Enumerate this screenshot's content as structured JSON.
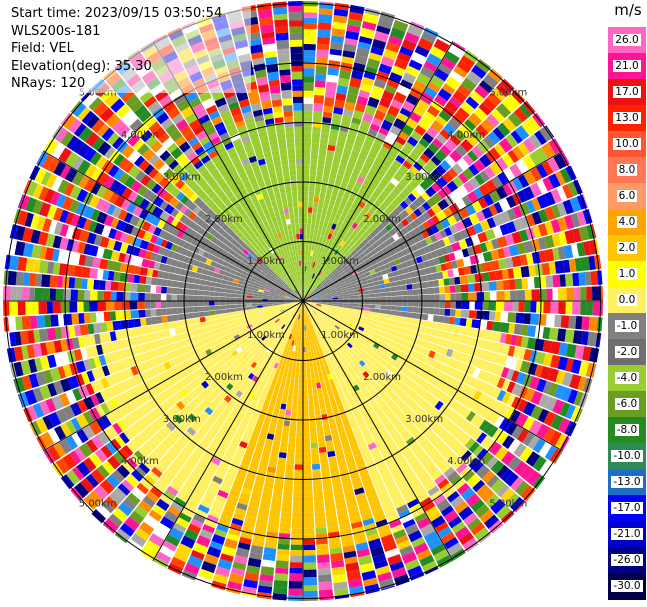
{
  "header": {
    "start_time": "Start time: 2023/09/15 03:50:54",
    "instrument": "WLS200s-181",
    "field": "Field: VEL",
    "elevation": "Elevation(deg): 35.30",
    "nrays": "NRays: 120"
  },
  "colorbar": {
    "unit": "m/s",
    "ticks": [
      "26.0",
      "21.0",
      "17.0",
      "13.0",
      "10.0",
      "8.0",
      "6.0",
      "4.0",
      "2.0",
      "1.0",
      "0.0",
      "-1.0",
      "-2.0",
      "-4.0",
      "-6.0",
      "-8.0",
      "-10.0",
      "-13.0",
      "-17.0",
      "-21.0",
      "-26.0",
      "-30.0"
    ],
    "colors": [
      "#ff66c4",
      "#ff1493",
      "#ee1111",
      "#ff2200",
      "#ff5533",
      "#ff7755",
      "#ff9966",
      "#ffa500",
      "#ffc400",
      "#ffff00",
      "#fff060",
      "#808080",
      "#6e6e6e",
      "#9acd32",
      "#6a9e22",
      "#228b22",
      "#2e8b57",
      "#1e6ec8",
      "#0000ff",
      "#0000cd",
      "#000080",
      "#00004a"
    ]
  },
  "chart_data": {
    "type": "ppi-radar",
    "field": "VEL",
    "units": "m/s",
    "nrays": 120,
    "range_rings_km": [
      "1.00km",
      "2.00km",
      "3.00km",
      "4.00km",
      "5.00km"
    ],
    "vmin": -30.0,
    "vmax": 30.0,
    "sectors": [
      {
        "azimuth_range_deg": [
          315,
          45
        ],
        "description": "green",
        "velocity_ms": -6
      },
      {
        "azimuth_range_deg": [
          45,
          100
        ],
        "description": "gray",
        "velocity_ms": 0
      },
      {
        "azimuth_range_deg": [
          100,
          260
        ],
        "description": "yellow",
        "velocity_ms": 2
      },
      {
        "azimuth_range_deg": [
          160,
          200
        ],
        "description": "orange core",
        "velocity_ms": 6
      },
      {
        "azimuth_range_deg": [
          260,
          315
        ],
        "description": "light green",
        "velocity_ms": -2
      }
    ]
  }
}
